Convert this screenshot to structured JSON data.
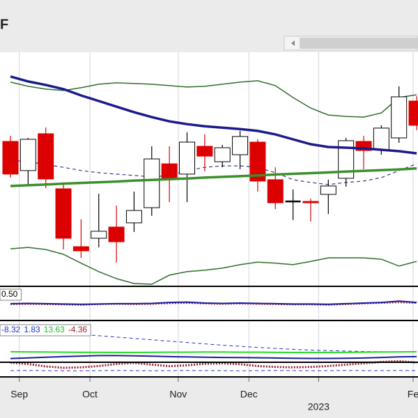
{
  "chart_data": {
    "type": "candlestick",
    "title": "F",
    "categories": [
      null,
      null,
      null,
      null,
      null,
      null,
      null,
      null,
      null,
      null,
      null,
      null,
      null,
      null,
      null,
      null,
      null,
      null,
      null,
      null,
      null,
      null,
      null,
      null
    ],
    "open": [
      61.8,
      49.3,
      65.1,
      41.5,
      16.7,
      20.3,
      25.1,
      26.9,
      33.4,
      52.2,
      47.8,
      59.7,
      53.1,
      56.1,
      61.5,
      45.4,
      36.1,
      36.1,
      39.1,
      46.0,
      61.8,
      58.2,
      63.3,
      79.1
    ],
    "high": [
      64.2,
      63.3,
      67.8,
      43.3,
      28.4,
      39.4,
      34.3,
      40.3,
      59.7,
      59.7,
      65.7,
      64.8,
      60.3,
      66.3,
      62.7,
      50.7,
      41.2,
      37.3,
      45.4,
      63.3,
      64.2,
      68.7,
      85.4,
      81.2
    ],
    "low": [
      46.3,
      43.3,
      41.8,
      15.5,
      11.9,
      16.4,
      9.9,
      23.0,
      29.9,
      35.8,
      35.8,
      49.0,
      50.7,
      49.9,
      40.3,
      32.8,
      28.1,
      27.5,
      30.7,
      42.4,
      49.9,
      56.1,
      61.2,
      66.6
    ],
    "close": [
      47.8,
      62.7,
      45.7,
      20.3,
      14.9,
      23.3,
      18.8,
      32.2,
      54.3,
      45.4,
      61.5,
      55.5,
      59.1,
      63.9,
      44.8,
      35.5,
      36.1,
      35.5,
      42.7,
      62.1,
      57.9,
      67.5,
      80.9,
      68.7
    ],
    "up_color": "#ffffff",
    "down_color": "#dd0000",
    "doji_color": "#000000",
    "ylim": [
      0,
      100
    ],
    "overlays": [
      {
        "color": "#2f6e2a",
        "width": 1.5,
        "style": "solid",
        "values": [
          87.2,
          85.4,
          84.2,
          83.6,
          84.8,
          86.3,
          86.9,
          86.6,
          86.3,
          85.7,
          85.1,
          85.4,
          86.3,
          87.2,
          87.8,
          85.7,
          80.6,
          76.1,
          73.1,
          72.5,
          72.2,
          74.0,
          80.6,
          81.8
        ]
      },
      {
        "color": "#2f6e2a",
        "width": 1.5,
        "style": "solid",
        "values": [
          15.8,
          16.4,
          15.5,
          13.4,
          9.6,
          6.0,
          3.0,
          0.9,
          0.6,
          4.5,
          6.0,
          6.6,
          7.5,
          9.0,
          10.1,
          9.6,
          9.0,
          10.4,
          11.9,
          11.9,
          11.9,
          11.3,
          8.4,
          10.4
        ]
      },
      {
        "color": "#333a8a",
        "width": 1.2,
        "style": "dashed",
        "values": [
          53.7,
          53.1,
          51.9,
          50.7,
          49.3,
          48.4,
          47.8,
          47.2,
          46.6,
          47.2,
          49.3,
          50.7,
          51.3,
          51.3,
          50.7,
          48.4,
          45.4,
          44.2,
          43.3,
          44.2,
          44.8,
          46.3,
          49.3,
          52.2
        ]
      },
      {
        "color": "#3b8f2b",
        "width": 3.5,
        "style": "solid",
        "values": [
          42.7,
          43.0,
          43.3,
          43.7,
          44.0,
          44.3,
          44.6,
          45.0,
          45.3,
          45.6,
          45.9,
          46.3,
          46.6,
          46.9,
          47.2,
          47.6,
          47.9,
          48.2,
          48.5,
          48.9,
          49.2,
          49.5,
          49.8,
          50.2
        ]
      },
      {
        "color": "#1a1a8c",
        "width": 3.5,
        "style": "solid",
        "values": [
          89.6,
          87.5,
          86.0,
          84.2,
          81.5,
          79.1,
          76.7,
          74.3,
          72.2,
          70.4,
          69.2,
          68.3,
          67.7,
          67.1,
          66.3,
          64.8,
          62.7,
          60.6,
          59.4,
          59.1,
          58.8,
          58.2,
          57.6,
          56.7
        ]
      }
    ],
    "xticks": [
      {
        "value": 0.5,
        "label": "Sep"
      },
      {
        "value": 4.5,
        "label": "Oct"
      },
      {
        "value": 9.5,
        "label": "Nov"
      },
      {
        "value": 13.5,
        "label": "Dec"
      },
      {
        "value": 17.45,
        "label": "2023"
      },
      {
        "value": 22.8,
        "label": "Fe"
      }
    ],
    "year_tick_index": 4,
    "grid": true,
    "panels": [
      {
        "ylim": [
          0,
          1
        ],
        "readouts": [
          {
            "text": "0.50",
            "color": "#000000"
          }
        ],
        "series": [
          {
            "color": "#992233",
            "width": 2,
            "style": "dotted",
            "values": [
              0.46,
              0.47,
              0.46,
              0.45,
              0.44,
              0.46,
              0.47,
              0.46,
              0.47,
              0.49,
              0.5,
              0.48,
              0.47,
              0.48,
              0.47,
              0.46,
              0.45,
              0.45,
              0.44,
              0.46,
              0.48,
              0.5,
              0.52,
              0.5
            ]
          },
          {
            "color": "#1a1a9c",
            "width": 2,
            "style": "solid",
            "values": [
              0.48,
              0.49,
              0.48,
              0.47,
              0.46,
              0.47,
              0.48,
              0.48,
              0.49,
              0.52,
              0.53,
              0.5,
              0.49,
              0.5,
              0.49,
              0.48,
              0.47,
              0.47,
              0.46,
              0.48,
              0.5,
              0.52,
              0.56,
              0.52
            ]
          }
        ]
      },
      {
        "ylim": [
          -20,
          20
        ],
        "readouts": [
          {
            "text": "-8.32",
            "color": "#2233cc"
          },
          {
            "text": "1.83",
            "color": "#2233cc"
          },
          {
            "text": "13.63",
            "color": "#22bb22"
          },
          {
            "text": "-4.36",
            "color": "#992233"
          }
        ],
        "series": [
          {
            "color": "#2233cc",
            "width": 1,
            "style": "dashed",
            "values": [
              13.3,
              12.8,
              12.3,
              11.8,
              10.8,
              9.8,
              8.8,
              7.8,
              6.8,
              5.8,
              4.8,
              3.8,
              2.8,
              2.0,
              1.2,
              0.5,
              -0.2,
              -0.8,
              -1.2,
              -1.5,
              -1.8,
              -2.0,
              -2.1,
              -2.1
            ]
          },
          {
            "color": "#2233cc",
            "width": 1,
            "style": "dashed",
            "values": [
              -15.9,
              -15.8,
              -15.9,
              -16.0,
              -16.0,
              -15.9,
              -15.8,
              -15.9,
              -16.0,
              -15.9,
              -15.8,
              -15.9,
              -15.9,
              -16.0,
              -15.9,
              -15.8,
              -15.9,
              -16.0,
              -15.9,
              -15.8,
              -15.9,
              -15.9,
              -15.8,
              -15.9
            ]
          },
          {
            "color": "#22dd22",
            "width": 2,
            "style": "solid",
            "values": [
              -2.0,
              -2.1,
              -2.2,
              -2.3,
              -2.4,
              -2.4,
              -2.5,
              -2.5,
              -2.4,
              -2.3,
              -2.3,
              -2.2,
              -2.2,
              -2.3,
              -2.3,
              -2.4,
              -2.5,
              -2.5,
              -2.5,
              -2.4,
              -2.3,
              -2.2,
              -2.1,
              -2.0
            ]
          },
          {
            "color": "#1a1a9c",
            "width": 2,
            "style": "solid",
            "values": [
              -7.0,
              -6.5,
              -6.0,
              -5.6,
              -5.2,
              -4.8,
              -4.8,
              -5.0,
              -5.3,
              -5.6,
              -5.8,
              -6.0,
              -6.2,
              -6.3,
              -6.4,
              -6.6,
              -6.8,
              -6.9,
              -6.9,
              -6.8,
              -6.6,
              -6.2,
              -5.8,
              -5.6
            ]
          },
          {
            "color": "#992233",
            "width": 3,
            "style": "dotted",
            "values": [
              -10.0,
              -11.0,
              -12.8,
              -13.8,
              -13.5,
              -12.5,
              -11.0,
              -10.2,
              -11.5,
              -12.6,
              -12.0,
              -10.8,
              -10.5,
              -11.2,
              -12.5,
              -13.2,
              -13.5,
              -13.2,
              -12.5,
              -11.5,
              -10.5,
              -9.5,
              -8.8,
              -10.0
            ]
          }
        ]
      }
    ]
  }
}
